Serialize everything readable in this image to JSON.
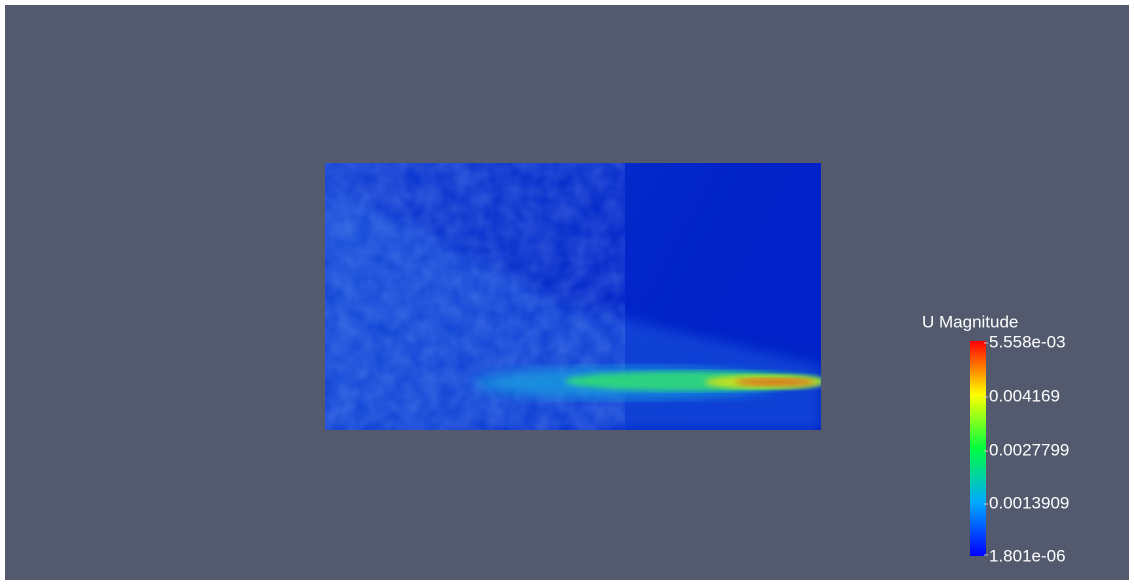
{
  "colorbar": {
    "title": "U Magnitude",
    "labels": [
      "5.558e-03",
      "0.004169",
      "0.0027799",
      "0.0013909",
      "1.801e-06"
    ]
  }
}
